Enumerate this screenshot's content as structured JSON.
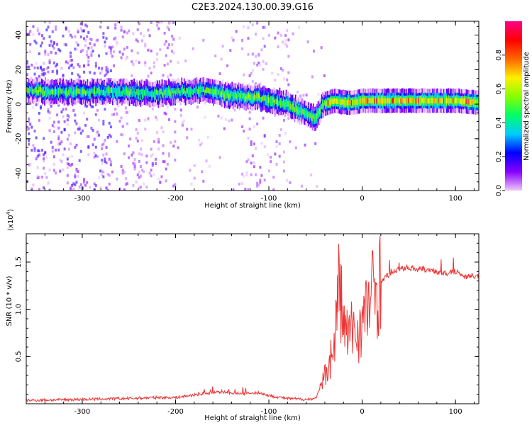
{
  "title": "C2E3.2024.130.00.39.G16",
  "chart_data": [
    {
      "type": "heatmap",
      "xlabel": "Height of straight line (km)",
      "ylabel": "Frequency (Hz)",
      "xlim": [
        -360,
        125
      ],
      "ylim": [
        -50,
        48
      ],
      "xticks": [
        -300,
        -200,
        -100,
        0,
        100
      ],
      "xtick_labels": [
        "-300",
        "-200",
        "-100",
        "0",
        "100"
      ],
      "yticks": [
        -40,
        -20,
        0,
        20,
        40
      ],
      "ytick_labels": [
        "-40",
        "-20",
        "0",
        "20",
        "40"
      ],
      "ridge": {
        "x": [
          -360,
          -330,
          -300,
          -260,
          -220,
          -200,
          -180,
          -160,
          -140,
          -120,
          -100,
          -80,
          -60,
          -50,
          -42,
          -30,
          -20,
          -10,
          0,
          50,
          100,
          125
        ],
        "y": [
          8,
          7,
          7,
          7,
          6,
          7,
          8,
          7,
          5,
          4,
          3,
          0,
          -6,
          -8,
          0,
          2,
          1,
          1,
          2,
          2,
          2,
          1
        ]
      },
      "colorbar": {
        "label": "Normalized spectral amplitude",
        "range": [
          0,
          1
        ],
        "ticks": [
          0.0,
          0.2,
          0.4,
          0.6,
          0.8
        ],
        "tick_labels": [
          "0.0",
          "0.2",
          "0.4",
          "0.6",
          "0.8"
        ],
        "colors": [
          "#f0c8f8",
          "#8800ff",
          "#0000ff",
          "#00ccff",
          "#00ff66",
          "#88ff00",
          "#ffee00",
          "#ff6600",
          "#ff0000",
          "#ff0088"
        ]
      },
      "grid": false
    },
    {
      "type": "line",
      "xlabel": "Height of straight line (km)",
      "ylabel": "SNR (10 * v/v)",
      "multiplier": "(x10",
      "multiplier_exp": "4",
      "multiplier_close": ")",
      "xlim": [
        -360,
        125
      ],
      "ylim": [
        0,
        1.8
      ],
      "xticks": [
        -300,
        -200,
        -100,
        0,
        100
      ],
      "xtick_labels": [
        "-300",
        "-200",
        "-100",
        "0",
        "100"
      ],
      "yticks": [
        0.5,
        1.0,
        1.5
      ],
      "ytick_labels": [
        "0.5",
        "1.0",
        "1.5"
      ],
      "series": [
        {
          "color": "#ee3333",
          "x": [
            -360,
            -300,
            -250,
            -220,
            -200,
            -170,
            -150,
            -130,
            -110,
            -100,
            -80,
            -60,
            -50,
            -45,
            -40,
            -35,
            -30,
            -25,
            -20,
            -15,
            -10,
            -5,
            0,
            5,
            10,
            20,
            30,
            40,
            50,
            60,
            70,
            80,
            90,
            100,
            110,
            125
          ],
          "y": [
            0.03,
            0.04,
            0.05,
            0.06,
            0.06,
            0.1,
            0.12,
            0.1,
            0.11,
            0.08,
            0.05,
            0.04,
            0.05,
            0.15,
            0.3,
            0.45,
            0.6,
            1.3,
            0.85,
            0.7,
            0.8,
            0.75,
            0.85,
            1.0,
            1.15,
            1.3,
            1.38,
            1.43,
            1.44,
            1.43,
            1.42,
            1.4,
            1.38,
            1.4,
            1.35,
            1.35
          ]
        }
      ],
      "grid": false
    }
  ]
}
